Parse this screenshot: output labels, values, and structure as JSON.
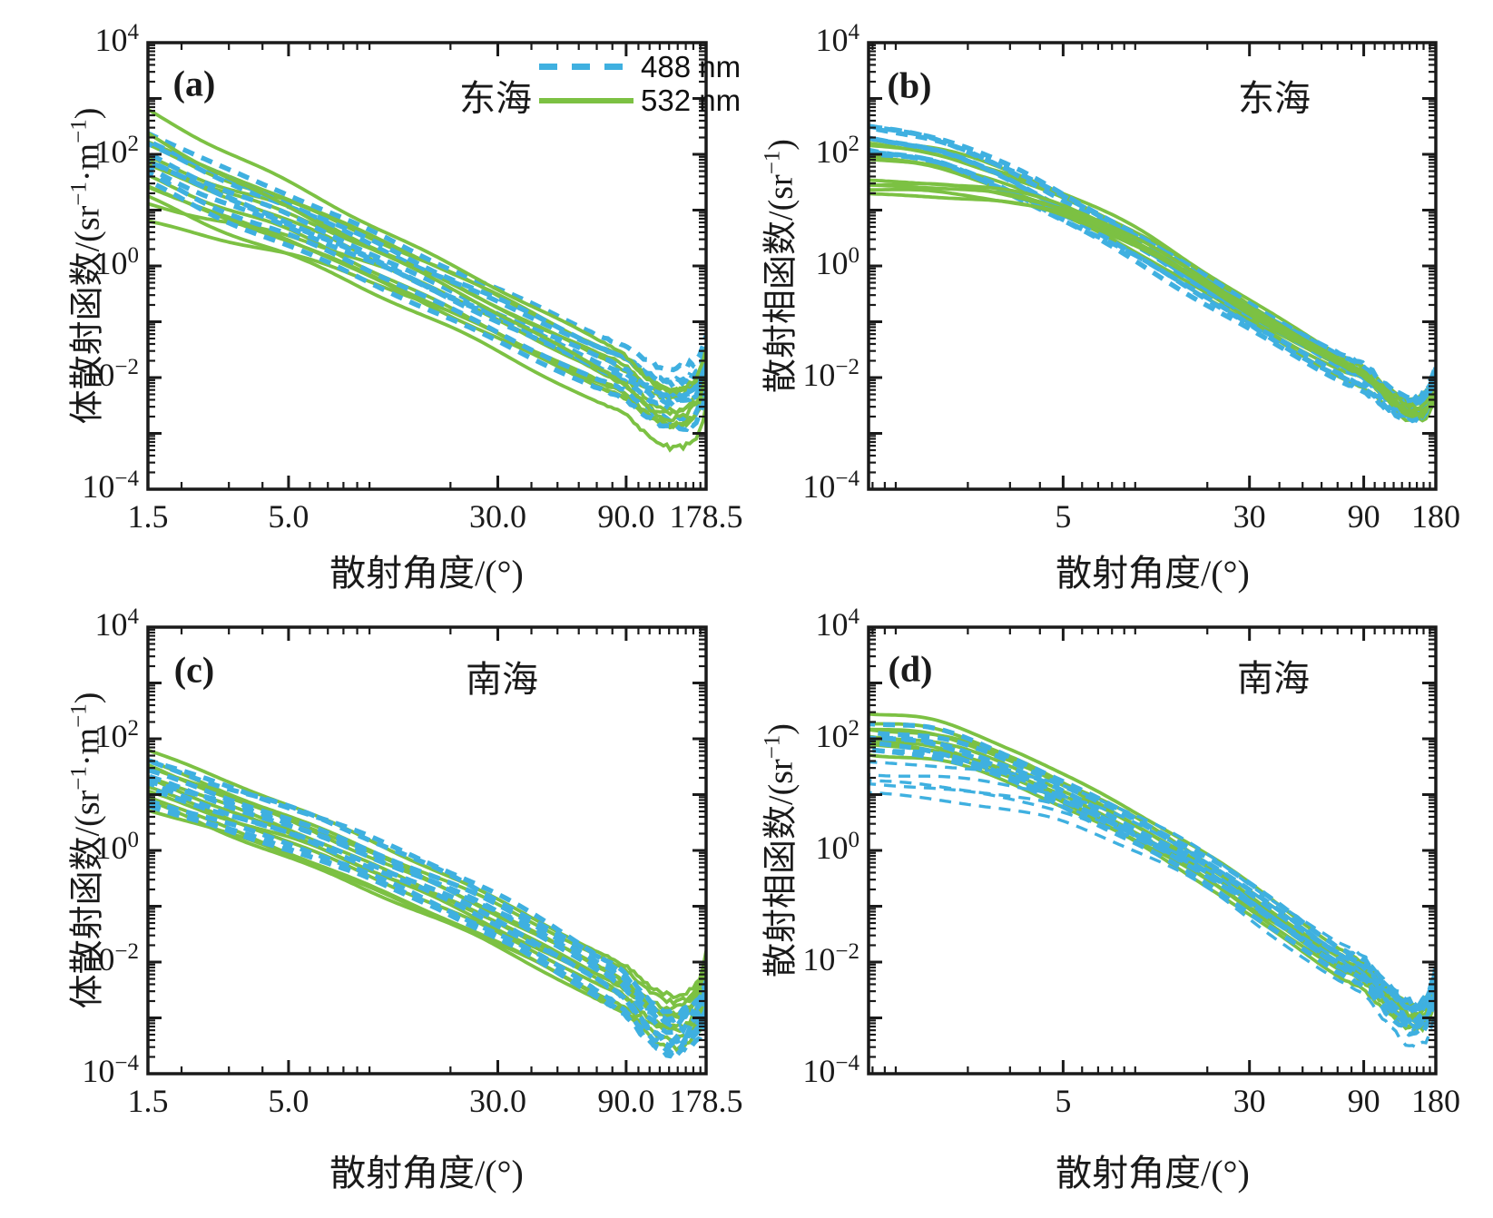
{
  "colors": {
    "c488": "#3FB0E0",
    "c532": "#7CC143",
    "axis": "#1a1a1a",
    "background": "#ffffff"
  },
  "legend": {
    "items": [
      {
        "label": "488 nm",
        "color": "#3FB0E0",
        "line_style": "dashed"
      },
      {
        "label": "532 nm",
        "color": "#7CC143",
        "line_style": "solid"
      }
    ]
  },
  "chart_data": [
    {
      "id": "a",
      "type": "line",
      "panel_letter": "(a)",
      "region_label": "东海",
      "xlabel": "散射角度/(°)",
      "ylabel": "体散射函数/(sr⁻¹·m⁻¹)",
      "ylabel_parts": [
        [
          "体散射函数/(sr",
          false
        ],
        [
          "−1",
          true
        ],
        [
          "·m",
          false
        ],
        [
          "−1",
          true
        ],
        [
          ")",
          false
        ]
      ],
      "xscale": "log",
      "yscale": "log",
      "xlim": [
        1.5,
        178.5
      ],
      "ylim": [
        0.0001,
        10000
      ],
      "x_ticks": [
        {
          "value": 1.5,
          "label": "1.5"
        },
        {
          "value": 5,
          "label": "5.0"
        },
        {
          "value": 30,
          "label": "30.0"
        },
        {
          "value": 90,
          "label": "90.0"
        },
        {
          "value": 178.5,
          "label": "178.5"
        }
      ],
      "x_minor_ticks": [
        2,
        3,
        4,
        6,
        7,
        8,
        9,
        10,
        20,
        40,
        50,
        60,
        70,
        80,
        100,
        110,
        120,
        130,
        140,
        150,
        160,
        170
      ],
      "y_ticks": [
        {
          "base": "10",
          "exp": "4",
          "value": 10000
        },
        {
          "base": "10",
          "exp": "2",
          "value": 100
        },
        {
          "base": "10",
          "exp": "0",
          "value": 1
        },
        {
          "base": "10",
          "exp": "−2",
          "value": 0.01
        },
        {
          "base": "10",
          "exp": "−4",
          "value": 0.0001
        }
      ],
      "bundles": [
        {
          "series": "532 nm",
          "n": 9,
          "spread": 0.95,
          "theta": [
            1.5,
            2.5,
            5,
            10,
            20,
            40,
            70,
            90,
            110,
            130,
            155,
            170,
            178.5
          ],
          "log10_value": [
            1.75,
            1.28,
            0.78,
            0.12,
            -0.55,
            -1.28,
            -1.85,
            -2.1,
            -2.45,
            -2.6,
            -2.5,
            -2.25,
            -1.85
          ]
        },
        {
          "series": "532 nm",
          "n": 2,
          "spread": 0.3,
          "theta": [
            1.5,
            2.5,
            5,
            10,
            20,
            40,
            70,
            90,
            110,
            130,
            155,
            170,
            178.5
          ],
          "log10_value": [
            0.95,
            0.7,
            0.4,
            -0.1,
            -0.7,
            -1.4,
            -1.98,
            -2.22,
            -2.58,
            -2.72,
            -2.6,
            -2.3,
            -1.95
          ]
        },
        {
          "series": "488 nm",
          "n": 9,
          "spread": 0.8,
          "theta": [
            1.5,
            2.5,
            5,
            10,
            20,
            40,
            70,
            90,
            110,
            130,
            155,
            170,
            178.5
          ],
          "log10_value": [
            1.95,
            1.42,
            0.85,
            0.2,
            -0.5,
            -1.18,
            -1.72,
            -1.95,
            -2.25,
            -2.38,
            -2.3,
            -2.1,
            -1.75
          ]
        },
        {
          "series": "532 nm",
          "n": 2,
          "spread": 0.45,
          "theta": [
            1.5,
            2.5,
            5,
            10,
            20,
            40,
            70,
            90,
            110,
            130,
            155,
            170,
            178.5
          ],
          "log10_value": [
            2.6,
            2.0,
            1.3,
            0.55,
            -0.2,
            -0.98,
            -1.62,
            -1.9,
            -2.3,
            -2.5,
            -2.4,
            -2.15,
            -1.8
          ]
        }
      ]
    },
    {
      "id": "b",
      "type": "line",
      "panel_letter": "(b)",
      "region_label": "东海",
      "xlabel": "散射角度/(°)",
      "ylabel": "散射相函数/(sr⁻¹)",
      "ylabel_parts": [
        [
          "散射相函数/(sr",
          false
        ],
        [
          "−1",
          true
        ],
        [
          ")",
          false
        ]
      ],
      "xscale": "log",
      "yscale": "log",
      "xlim": [
        0.77,
        180
      ],
      "ylim": [
        0.0001,
        10000
      ],
      "x_ticks": [
        {
          "value": 5,
          "label": "5"
        },
        {
          "value": 30,
          "label": "30"
        },
        {
          "value": 90,
          "label": "90"
        },
        {
          "value": 180,
          "label": "180"
        }
      ],
      "x_minor_ticks": [
        0.8,
        0.9,
        1,
        2,
        3,
        4,
        6,
        7,
        8,
        9,
        10,
        20,
        40,
        50,
        60,
        70,
        80,
        100,
        110,
        120,
        130,
        140,
        150,
        160,
        170
      ],
      "y_ticks": [
        {
          "base": "10",
          "exp": "4",
          "value": 10000
        },
        {
          "base": "10",
          "exp": "2",
          "value": 100
        },
        {
          "base": "10",
          "exp": "0",
          "value": 1
        },
        {
          "base": "10",
          "exp": "−2",
          "value": 0.01
        },
        {
          "base": "10",
          "exp": "−4",
          "value": 0.0001
        }
      ],
      "bundles": [
        {
          "series": "532 nm",
          "n": 6,
          "spread": 0.4,
          "theta": [
            0.77,
            1.5,
            3,
            5,
            10,
            20,
            40,
            70,
            90,
            120,
            145,
            165,
            180
          ],
          "log10_value": [
            2.1,
            1.92,
            1.5,
            1.1,
            0.45,
            -0.35,
            -1.15,
            -1.75,
            -1.98,
            -2.42,
            -2.6,
            -2.5,
            -2.15
          ]
        },
        {
          "series": "488 nm",
          "n": 8,
          "spread": 0.55,
          "theta": [
            0.77,
            1.5,
            3,
            5,
            10,
            20,
            40,
            70,
            90,
            120,
            145,
            165,
            180
          ],
          "log10_value": [
            2.25,
            2.05,
            1.52,
            1.05,
            0.35,
            -0.45,
            -1.22,
            -1.8,
            -2.02,
            -2.45,
            -2.58,
            -2.42,
            -2.0
          ]
        },
        {
          "series": "532 nm",
          "n": 5,
          "spread": 0.14,
          "theta": [
            0.77,
            1.5,
            3,
            5,
            10,
            20,
            40,
            70,
            90,
            120,
            145,
            165,
            180
          ],
          "log10_value": [
            1.42,
            1.38,
            1.22,
            0.98,
            0.42,
            -0.32,
            -1.1,
            -1.7,
            -1.95,
            -2.4,
            -2.62,
            -2.55,
            -2.25
          ]
        }
      ]
    },
    {
      "id": "c",
      "type": "line",
      "panel_letter": "(c)",
      "region_label": "南海",
      "xlabel": "散射角度/(°)",
      "ylabel": "体散射函数/(sr⁻¹·m⁻¹)",
      "ylabel_parts": [
        [
          "体散射函数/(sr",
          false
        ],
        [
          "−1",
          true
        ],
        [
          "·m",
          false
        ],
        [
          "−1",
          true
        ],
        [
          ")",
          false
        ]
      ],
      "xscale": "log",
      "yscale": "log",
      "xlim": [
        1.5,
        178.5
      ],
      "ylim": [
        0.0001,
        10000
      ],
      "x_ticks": [
        {
          "value": 1.5,
          "label": "1.5"
        },
        {
          "value": 5,
          "label": "5.0"
        },
        {
          "value": 30,
          "label": "30.0"
        },
        {
          "value": 90,
          "label": "90.0"
        },
        {
          "value": 178.5,
          "label": "178.5"
        }
      ],
      "x_minor_ticks": [
        2,
        3,
        4,
        6,
        7,
        8,
        9,
        10,
        20,
        40,
        50,
        60,
        70,
        80,
        100,
        110,
        120,
        130,
        140,
        150,
        160,
        170
      ],
      "y_ticks": [
        {
          "base": "10",
          "exp": "4",
          "value": 10000
        },
        {
          "base": "10",
          "exp": "2",
          "value": 100
        },
        {
          "base": "10",
          "exp": "0",
          "value": 1
        },
        {
          "base": "10",
          "exp": "−2",
          "value": 0.01
        },
        {
          "base": "10",
          "exp": "−4",
          "value": 0.0001
        }
      ],
      "bundles": [
        {
          "series": "532 nm",
          "n": 9,
          "spread": 0.85,
          "theta": [
            1.5,
            2.5,
            5,
            10,
            20,
            40,
            70,
            90,
            110,
            130,
            155,
            170,
            178.5
          ],
          "log10_value": [
            1.35,
            0.92,
            0.38,
            -0.22,
            -0.85,
            -1.58,
            -2.2,
            -2.5,
            -2.85,
            -3.0,
            -2.9,
            -2.6,
            -2.2
          ]
        },
        {
          "series": "532 nm",
          "n": 2,
          "spread": 0.3,
          "theta": [
            1.5,
            2.5,
            5,
            10,
            20,
            40,
            70,
            90,
            110,
            130,
            155,
            170,
            178.5
          ],
          "log10_value": [
            0.9,
            0.55,
            0.1,
            -0.5,
            -1.1,
            -1.8,
            -2.4,
            -2.65,
            -2.95,
            -3.1,
            -2.95,
            -2.55,
            -2.1
          ]
        },
        {
          "series": "488 nm",
          "n": 9,
          "spread": 0.75,
          "theta": [
            1.5,
            2.5,
            5,
            10,
            20,
            40,
            70,
            90,
            110,
            130,
            155,
            170,
            178.5
          ],
          "log10_value": [
            1.18,
            0.82,
            0.35,
            -0.2,
            -0.82,
            -1.55,
            -2.25,
            -2.62,
            -3.1,
            -3.3,
            -3.15,
            -2.95,
            -2.65
          ]
        },
        {
          "series": "488 nm",
          "n": 1,
          "spread": 0,
          "theta": [
            1.5,
            2.5,
            5,
            10,
            20,
            40,
            70,
            90,
            110,
            130,
            155,
            170,
            178.5
          ],
          "log10_value": [
            1.6,
            1.25,
            0.8,
            0.25,
            -0.4,
            -1.15,
            -1.85,
            -2.2,
            -2.7,
            -2.9,
            -2.8,
            -2.6,
            -2.3
          ]
        }
      ]
    },
    {
      "id": "d",
      "type": "line",
      "panel_letter": "(d)",
      "region_label": "南海",
      "xlabel": "散射角度/(°)",
      "ylabel": "散射相函数/(sr⁻¹)",
      "ylabel_parts": [
        [
          "散射相函数/(sr",
          false
        ],
        [
          "−1",
          true
        ],
        [
          ")",
          false
        ]
      ],
      "xscale": "log",
      "yscale": "log",
      "xlim": [
        0.77,
        180
      ],
      "ylim": [
        0.0001,
        10000
      ],
      "x_ticks": [
        {
          "value": 5,
          "label": "5"
        },
        {
          "value": 30,
          "label": "30"
        },
        {
          "value": 90,
          "label": "90"
        },
        {
          "value": 180,
          "label": "180"
        }
      ],
      "x_minor_ticks": [
        0.8,
        0.9,
        1,
        2,
        3,
        4,
        6,
        7,
        8,
        9,
        10,
        20,
        40,
        50,
        60,
        70,
        80,
        100,
        110,
        120,
        130,
        140,
        150,
        160,
        170
      ],
      "y_ticks": [
        {
          "base": "10",
          "exp": "4",
          "value": 10000
        },
        {
          "base": "10",
          "exp": "2",
          "value": 100
        },
        {
          "base": "10",
          "exp": "0",
          "value": 1
        },
        {
          "base": "10",
          "exp": "−2",
          "value": 0.01
        },
        {
          "base": "10",
          "exp": "−4",
          "value": 0.0001
        }
      ],
      "bundles": [
        {
          "series": "532 nm",
          "n": 7,
          "spread": 0.42,
          "theta": [
            0.77,
            1.5,
            3,
            5,
            10,
            20,
            40,
            70,
            90,
            120,
            145,
            165,
            180
          ],
          "log10_value": [
            2.0,
            1.88,
            1.45,
            1.0,
            0.35,
            -0.42,
            -1.3,
            -2.0,
            -2.25,
            -2.8,
            -3.0,
            -2.9,
            -2.5
          ]
        },
        {
          "series": "532 nm",
          "n": 2,
          "spread": 0.18,
          "theta": [
            0.77,
            1.5,
            3,
            5,
            10,
            20,
            40,
            70,
            90,
            120,
            145,
            165,
            180
          ],
          "log10_value": [
            2.42,
            2.28,
            1.8,
            1.3,
            0.6,
            -0.2,
            -1.1,
            -1.85,
            -2.15,
            -2.7,
            -2.95,
            -2.85,
            -2.45
          ]
        },
        {
          "series": "488 nm",
          "n": 7,
          "spread": 0.42,
          "theta": [
            0.77,
            1.5,
            3,
            5,
            10,
            20,
            40,
            70,
            90,
            120,
            145,
            165,
            180
          ],
          "log10_value": [
            1.98,
            1.85,
            1.42,
            0.98,
            0.35,
            -0.35,
            -1.22,
            -1.95,
            -2.2,
            -2.75,
            -3.0,
            -2.85,
            -2.3
          ]
        },
        {
          "series": "488 nm",
          "n": 5,
          "spread": 0.6,
          "thin": true,
          "theta": [
            0.77,
            1.5,
            3,
            5,
            10,
            20,
            40,
            70,
            90,
            120,
            145,
            165,
            180
          ],
          "log10_value": [
            1.3,
            1.24,
            1.05,
            0.85,
            0.32,
            -0.35,
            -1.25,
            -1.95,
            -2.2,
            -2.8,
            -3.05,
            -2.9,
            -2.4
          ]
        }
      ]
    }
  ]
}
